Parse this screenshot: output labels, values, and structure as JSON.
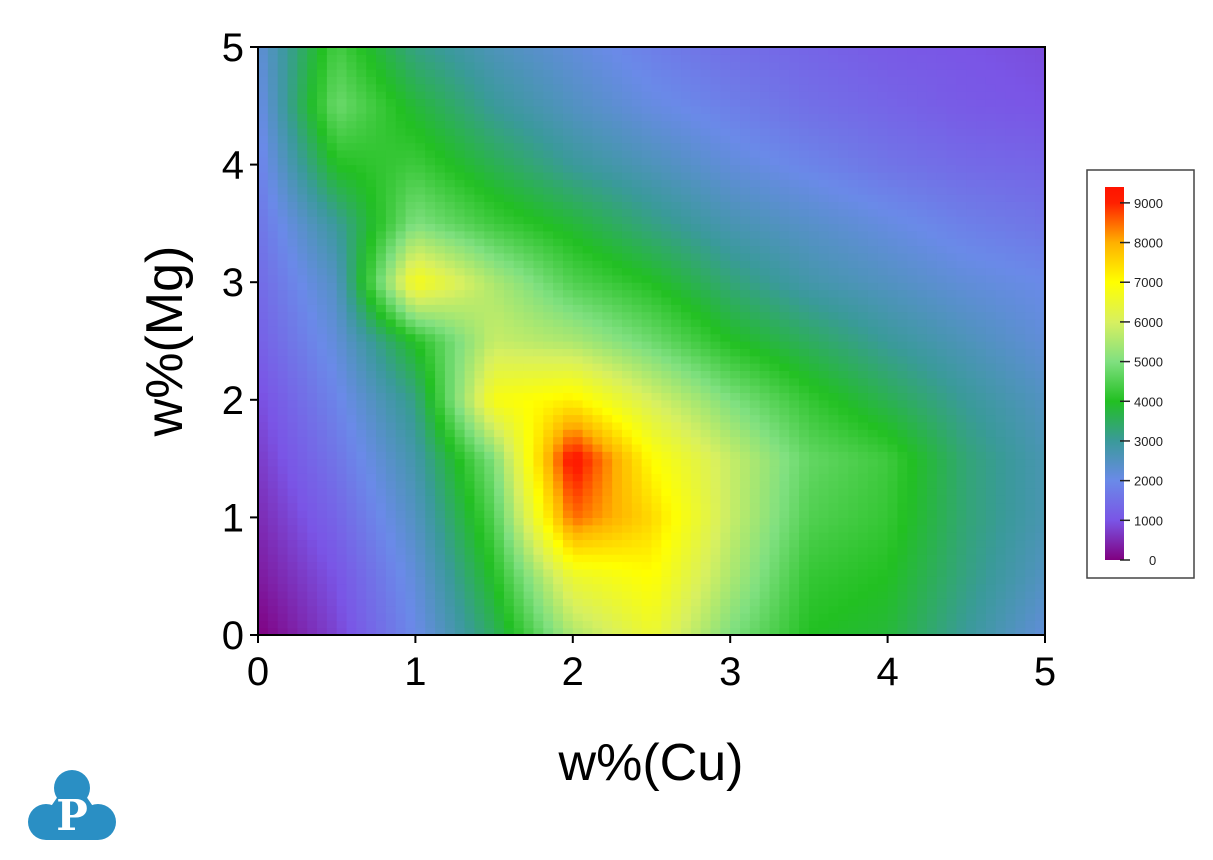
{
  "chart_data": {
    "type": "heatmap",
    "title": "",
    "xlabel": "w%(Cu)",
    "ylabel": "w%(Mg)",
    "xlim": [
      0,
      5
    ],
    "ylim": [
      0,
      5
    ],
    "x": [
      0,
      0.5,
      1,
      1.5,
      2,
      2.5,
      3,
      3.5,
      4,
      4.5,
      5
    ],
    "y": [
      0,
      0.5,
      1,
      1.5,
      2,
      2.5,
      3,
      3.5,
      4,
      4.5,
      5
    ],
    "z": [
      [
        0,
        800,
        2000,
        3500,
        5500,
        6500,
        5000,
        4000,
        3800,
        3000,
        2200
      ],
      [
        300,
        1000,
        2200,
        4000,
        6500,
        7000,
        5500,
        4200,
        4000,
        3200,
        2500
      ],
      [
        500,
        1300,
        2500,
        4500,
        8500,
        7500,
        5800,
        4500,
        4200,
        3300,
        2700
      ],
      [
        700,
        1600,
        2800,
        5000,
        9300,
        7000,
        5800,
        4700,
        4300,
        3300,
        2700
      ],
      [
        900,
        1900,
        3200,
        6800,
        7200,
        6000,
        5000,
        4200,
        3600,
        3000,
        2500
      ],
      [
        1200,
        2200,
        4000,
        5800,
        5500,
        4800,
        4000,
        3500,
        3000,
        2600,
        2200
      ],
      [
        1400,
        2500,
        6800,
        5500,
        4500,
        4000,
        3300,
        2800,
        2500,
        2200,
        2000
      ],
      [
        1600,
        3000,
        5000,
        4300,
        3800,
        3200,
        2700,
        2400,
        2100,
        1800,
        1600
      ],
      [
        1800,
        4000,
        4300,
        3600,
        3000,
        2600,
        2200,
        1900,
        1600,
        1400,
        1300
      ],
      [
        2000,
        4800,
        3800,
        3000,
        2500,
        2100,
        1800,
        1500,
        1300,
        1100,
        1000
      ],
      [
        2200,
        4400,
        3200,
        2600,
        2200,
        1800,
        1500,
        1300,
        1100,
        1000,
        900
      ]
    ],
    "xticks": [
      "0",
      "1",
      "2",
      "3",
      "4",
      "5"
    ],
    "yticks": [
      "0",
      "1",
      "2",
      "3",
      "4",
      "5"
    ],
    "colorbar": {
      "min": 0,
      "max": 9400,
      "ticks": [
        "0",
        "1000",
        "2000",
        "3000",
        "4000",
        "5000",
        "6000",
        "7000",
        "8000",
        "9000"
      ],
      "colors": [
        "#800080",
        "#7a55e6",
        "#6a8ae8",
        "#3a9a9a",
        "#22c022",
        "#80e080",
        "#d8f060",
        "#ffff00",
        "#ffb000",
        "#ff2000",
        "#ff0000"
      ]
    },
    "grid": false,
    "legend": "right"
  },
  "logo": {
    "letter": "P",
    "color": "#2a8fc4"
  }
}
